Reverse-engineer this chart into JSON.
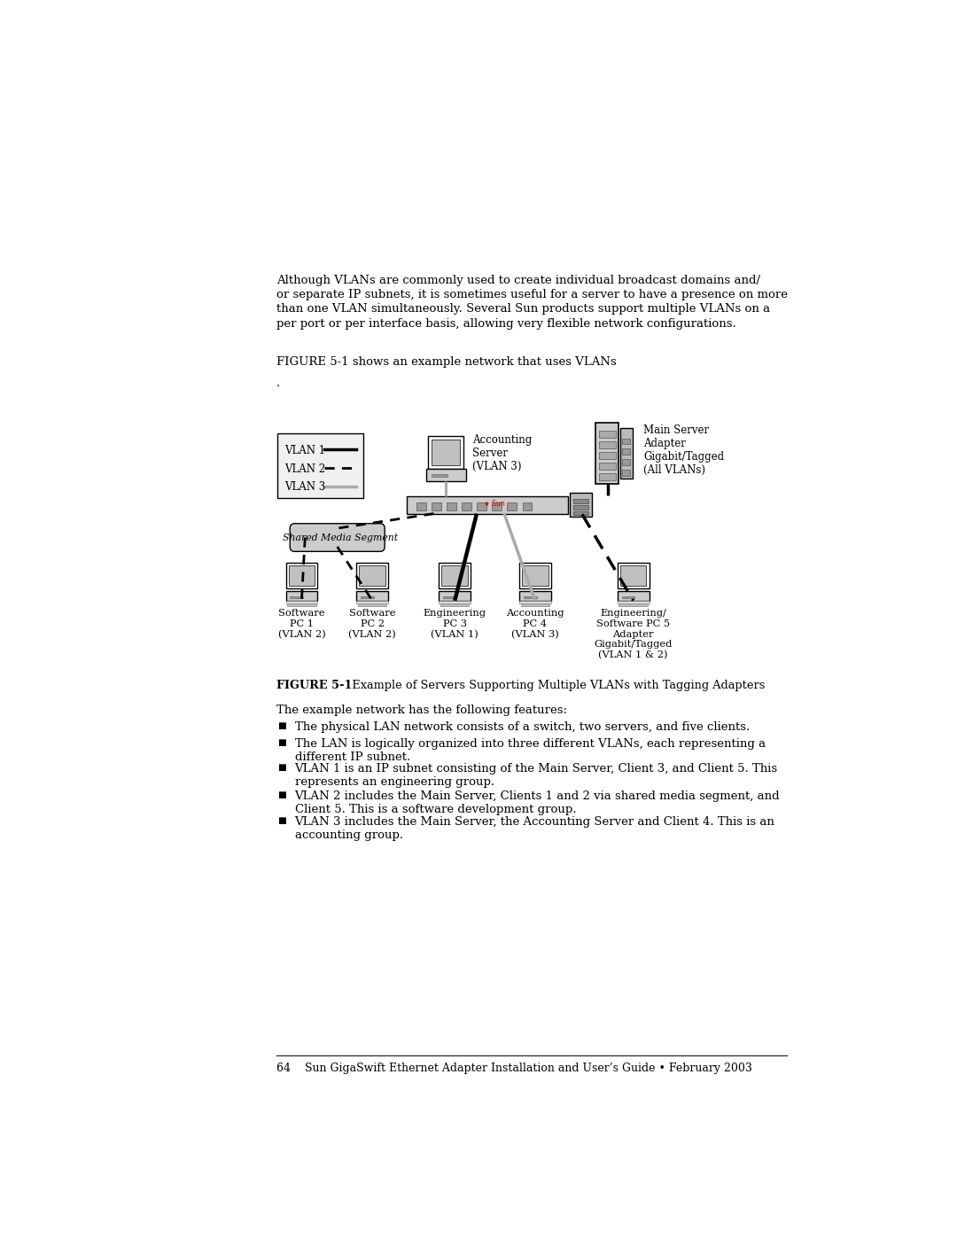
{
  "bg_color": "#ffffff",
  "page_width": 10.8,
  "page_height": 13.97,
  "top_text_lines": [
    "Although VLANs are commonly used to create individual broadcast domains and/",
    "or separate IP subnets, it is sometimes useful for a server to have a presence on more",
    "than one VLAN simultaneously. Several Sun products support multiple VLANs on a",
    "per port or per interface basis, allowing very flexible network configurations."
  ],
  "figure_ref": "FIGURE 5-1 shows an example network that uses VLANs",
  "body_text_intro": "The example network has the following features:",
  "bullet_points": [
    "The physical LAN network consists of a switch, two servers, and five clients.",
    "The LAN is logically organized into three different VLANs, each representing a\ndifferent IP subnet.",
    "VLAN 1 is an IP subnet consisting of the Main Server, Client 3, and Client 5. This\nrepresents an engineering group.",
    "VLAN 2 includes the Main Server, Clients 1 and 2 via shared media segment, and\nClient 5. This is a software development group.",
    "VLAN 3 includes the Main Server, the Accounting Server and Client 4. This is an\naccounting group."
  ],
  "footer_text": "64    Sun GigaSwift Ethernet Adapter Installation and User’s Guide • February 2003",
  "pc_labels": [
    "Software\nPC 1\n(VLAN 2)",
    "Software\nPC 2\n(VLAN 2)",
    "Engineering\nPC 3\n(VLAN 1)",
    "Accounting\nPC 4\n(VLAN 3)",
    "Engineering/\nSoftware PC 5\nAdapter\nGigabit/Tagged\n(VLAN 1 & 2)"
  ],
  "accounting_server_label": "Accounting\nServer\n(VLAN 3)",
  "main_server_label": "Main Server\nAdapter\nGigabit/Tagged\n(All VLANs)",
  "shared_media_label": "Shared Media Segment"
}
